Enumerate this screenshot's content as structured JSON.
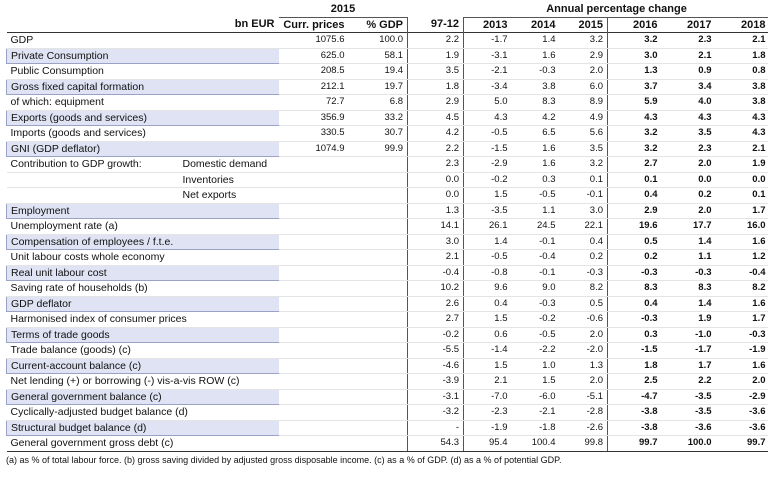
{
  "header": {
    "year_2015": "2015",
    "annual_change": "Annual percentage change",
    "col_unit": "bn EUR",
    "col_curr": "Curr. prices",
    "col_gdp": "% GDP",
    "col_9712": "97-12",
    "years": [
      "2013",
      "2014",
      "2015",
      "2016",
      "2017",
      "2018"
    ]
  },
  "rows": [
    {
      "label": "GDP",
      "unit": "",
      "curr": "1075.6",
      "gdp": "100.0",
      "v9712": "2.2",
      "vals": [
        "-1.7",
        "1.4",
        "3.2",
        "3.2",
        "2.3",
        "2.1"
      ],
      "shade": false
    },
    {
      "label": "Private Consumption",
      "unit": "",
      "curr": "625.0",
      "gdp": "58.1",
      "v9712": "1.9",
      "vals": [
        "-3.1",
        "1.6",
        "2.9",
        "3.0",
        "2.1",
        "1.8"
      ],
      "shade": true
    },
    {
      "label": "Public Consumption",
      "unit": "",
      "curr": "208.5",
      "gdp": "19.4",
      "v9712": "3.5",
      "vals": [
        "-2.1",
        "-0.3",
        "2.0",
        "1.3",
        "0.9",
        "0.8"
      ],
      "shade": false
    },
    {
      "label": "Gross fixed capital formation",
      "unit": "",
      "curr": "212.1",
      "gdp": "19.7",
      "v9712": "1.8",
      "vals": [
        "-3.4",
        "3.8",
        "6.0",
        "3.7",
        "3.4",
        "3.8"
      ],
      "shade": true
    },
    {
      "label": "of which: equipment",
      "unit": "",
      "curr": "72.7",
      "gdp": "6.8",
      "v9712": "2.9",
      "vals": [
        "5.0",
        "8.3",
        "8.9",
        "5.9",
        "4.0",
        "3.8"
      ],
      "shade": false
    },
    {
      "label": "Exports (goods and services)",
      "unit": "",
      "curr": "356.9",
      "gdp": "33.2",
      "v9712": "4.5",
      "vals": [
        "4.3",
        "4.2",
        "4.9",
        "4.3",
        "4.3",
        "4.3"
      ],
      "shade": true
    },
    {
      "label": "Imports (goods and services)",
      "unit": "",
      "curr": "330.5",
      "gdp": "30.7",
      "v9712": "4.2",
      "vals": [
        "-0.5",
        "6.5",
        "5.6",
        "3.2",
        "3.5",
        "4.3"
      ],
      "shade": false
    },
    {
      "label": "GNI (GDP deflator)",
      "unit": "",
      "curr": "1074.9",
      "gdp": "99.9",
      "v9712": "2.2",
      "vals": [
        "-1.5",
        "1.6",
        "3.5",
        "3.2",
        "2.3",
        "2.1"
      ],
      "shade": true
    },
    {
      "label": "Contribution to GDP growth:",
      "unit": "Domestic demand",
      "curr": "",
      "gdp": "",
      "v9712": "2.3",
      "vals": [
        "-2.9",
        "1.6",
        "3.2",
        "2.7",
        "2.0",
        "1.9"
      ],
      "shade": false
    },
    {
      "label": "",
      "unit": "Inventories",
      "curr": "",
      "gdp": "",
      "v9712": "0.0",
      "vals": [
        "-0.2",
        "0.3",
        "0.1",
        "0.1",
        "0.0",
        "0.0"
      ],
      "shade": false
    },
    {
      "label": "",
      "unit": "Net exports",
      "curr": "",
      "gdp": "",
      "v9712": "0.0",
      "vals": [
        "1.5",
        "-0.5",
        "-0.1",
        "0.4",
        "0.2",
        "0.1"
      ],
      "shade": false
    },
    {
      "label": "Employment",
      "unit": "",
      "curr": "",
      "gdp": "",
      "v9712": "1.3",
      "vals": [
        "-3.5",
        "1.1",
        "3.0",
        "2.9",
        "2.0",
        "1.7"
      ],
      "shade": true
    },
    {
      "label": "Unemployment rate (a)",
      "unit": "",
      "curr": "",
      "gdp": "",
      "v9712": "14.1",
      "vals": [
        "26.1",
        "24.5",
        "22.1",
        "19.6",
        "17.7",
        "16.0"
      ],
      "shade": false
    },
    {
      "label": "Compensation of employees / f.t.e.",
      "unit": "",
      "curr": "",
      "gdp": "",
      "v9712": "3.0",
      "vals": [
        "1.4",
        "-0.1",
        "0.4",
        "0.5",
        "1.4",
        "1.6"
      ],
      "shade": true
    },
    {
      "label": "Unit labour costs whole economy",
      "unit": "",
      "curr": "",
      "gdp": "",
      "v9712": "2.1",
      "vals": [
        "-0.5",
        "-0.4",
        "0.2",
        "0.2",
        "1.1",
        "1.2"
      ],
      "shade": false
    },
    {
      "label": "Real unit labour cost",
      "unit": "",
      "curr": "",
      "gdp": "",
      "v9712": "-0.4",
      "vals": [
        "-0.8",
        "-0.1",
        "-0.3",
        "-0.3",
        "-0.3",
        "-0.4"
      ],
      "shade": true
    },
    {
      "label": "Saving rate of households (b)",
      "unit": "",
      "curr": "",
      "gdp": "",
      "v9712": "10.2",
      "vals": [
        "9.6",
        "9.0",
        "8.2",
        "8.3",
        "8.3",
        "8.2"
      ],
      "shade": false
    },
    {
      "label": "GDP deflator",
      "unit": "",
      "curr": "",
      "gdp": "",
      "v9712": "2.6",
      "vals": [
        "0.4",
        "-0.3",
        "0.5",
        "0.4",
        "1.4",
        "1.6"
      ],
      "shade": true
    },
    {
      "label": "Harmonised index of consumer prices",
      "unit": "",
      "curr": "",
      "gdp": "",
      "v9712": "2.7",
      "vals": [
        "1.5",
        "-0.2",
        "-0.6",
        "-0.3",
        "1.9",
        "1.7"
      ],
      "shade": false
    },
    {
      "label": "Terms of trade goods",
      "unit": "",
      "curr": "",
      "gdp": "",
      "v9712": "-0.2",
      "vals": [
        "0.6",
        "-0.5",
        "2.0",
        "0.3",
        "-1.0",
        "-0.3"
      ],
      "shade": true
    },
    {
      "label": "Trade balance (goods) (c)",
      "unit": "",
      "curr": "",
      "gdp": "",
      "v9712": "-5.5",
      "vals": [
        "-1.4",
        "-2.2",
        "-2.0",
        "-1.5",
        "-1.7",
        "-1.9"
      ],
      "shade": false
    },
    {
      "label": "Current-account balance (c)",
      "unit": "",
      "curr": "",
      "gdp": "",
      "v9712": "-4.6",
      "vals": [
        "1.5",
        "1.0",
        "1.3",
        "1.8",
        "1.7",
        "1.6"
      ],
      "shade": true
    },
    {
      "label": "Net lending (+) or borrowing (-) vis-a-vis ROW (c)",
      "unit": "",
      "curr": "",
      "gdp": "",
      "v9712": "-3.9",
      "vals": [
        "2.1",
        "1.5",
        "2.0",
        "2.5",
        "2.2",
        "2.0"
      ],
      "shade": false
    },
    {
      "label": "General government balance (c)",
      "unit": "",
      "curr": "",
      "gdp": "",
      "v9712": "-3.1",
      "vals": [
        "-7.0",
        "-6.0",
        "-5.1",
        "-4.7",
        "-3.5",
        "-2.9"
      ],
      "shade": true
    },
    {
      "label": "Cyclically-adjusted budget balance (d)",
      "unit": "",
      "curr": "",
      "gdp": "",
      "v9712": "-3.2",
      "vals": [
        "-2.3",
        "-2.1",
        "-2.8",
        "-3.8",
        "-3.5",
        "-3.6"
      ],
      "shade": false
    },
    {
      "label": "Structural budget balance (d)",
      "unit": "",
      "curr": "",
      "gdp": "",
      "v9712": "-",
      "vals": [
        "-1.9",
        "-1.8",
        "-2.6",
        "-3.8",
        "-3.6",
        "-3.6"
      ],
      "shade": true
    },
    {
      "label": "General government gross debt (c)",
      "unit": "",
      "curr": "",
      "gdp": "",
      "v9712": "54.3",
      "vals": [
        "95.4",
        "100.4",
        "99.8",
        "99.7",
        "100.0",
        "99.7"
      ],
      "shade": false
    }
  ],
  "footnote": "(a) as % of total labour force. (b) gross saving divided by adjusted gross disposable income. (c) as a % of GDP. (d) as a % of potential GDP."
}
